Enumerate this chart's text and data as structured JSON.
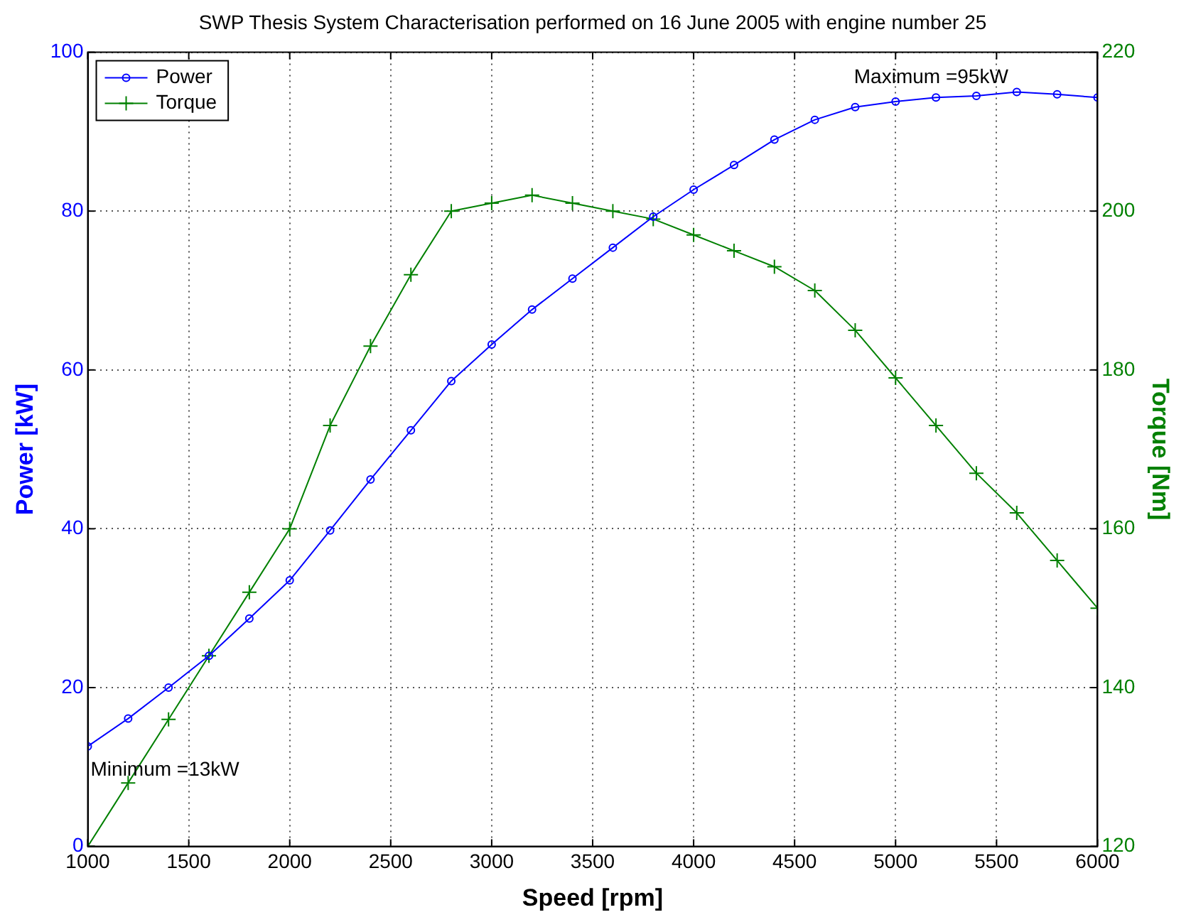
{
  "chart_data": {
    "type": "line",
    "title": "SWP Thesis System Characterisation performed on 16 June 2005 with engine number 25",
    "xlabel": "Speed [rpm]",
    "ylabel": "Power [kW]",
    "y2label": "Torque [Nm]",
    "x": [
      1000,
      1200,
      1400,
      1600,
      1800,
      2000,
      2200,
      2400,
      2600,
      2800,
      3000,
      3200,
      3400,
      3600,
      3800,
      4000,
      4200,
      4400,
      4600,
      4800,
      5000,
      5200,
      5400,
      5600,
      5800,
      6000
    ],
    "series": [
      {
        "name": "Power",
        "color": "#0000ff",
        "marker": "circle",
        "values": [
          12.6,
          16.1,
          20,
          24,
          28.7,
          33.5,
          39.8,
          46.2,
          52.4,
          58.6,
          63.2,
          67.6,
          71.5,
          75.4,
          79.3,
          82.7,
          85.8,
          89,
          91.5,
          93.1,
          93.8,
          94.3,
          94.5,
          95,
          94.7,
          94.3
        ]
      },
      {
        "name": "Torque",
        "color": "#008000",
        "marker": "cross",
        "axis": "y2",
        "values": [
          120,
          128,
          136,
          144,
          152,
          160,
          173,
          183,
          192,
          200,
          201,
          202,
          201,
          200,
          199,
          197,
          195,
          193,
          190,
          185,
          179,
          173,
          167,
          162,
          156,
          150
        ]
      }
    ],
    "xlim": [
      1000,
      6000
    ],
    "xticks": [
      1000,
      1500,
      2000,
      2500,
      3000,
      3500,
      4000,
      4500,
      5000,
      5500,
      6000
    ],
    "ylim": [
      0,
      100
    ],
    "yticks": [
      0,
      20,
      40,
      60,
      80,
      100
    ],
    "y2lim": [
      120,
      220
    ],
    "y2ticks": [
      120,
      140,
      160,
      180,
      200,
      220
    ],
    "grid": true,
    "legend": "top left",
    "line_style": "solid",
    "annotations": [
      {
        "text": "Maximum =95kW",
        "x": 5600,
        "y": 95
      },
      {
        "text": "Minimum =13kW",
        "x": 1000,
        "y": 12.6
      }
    ]
  }
}
